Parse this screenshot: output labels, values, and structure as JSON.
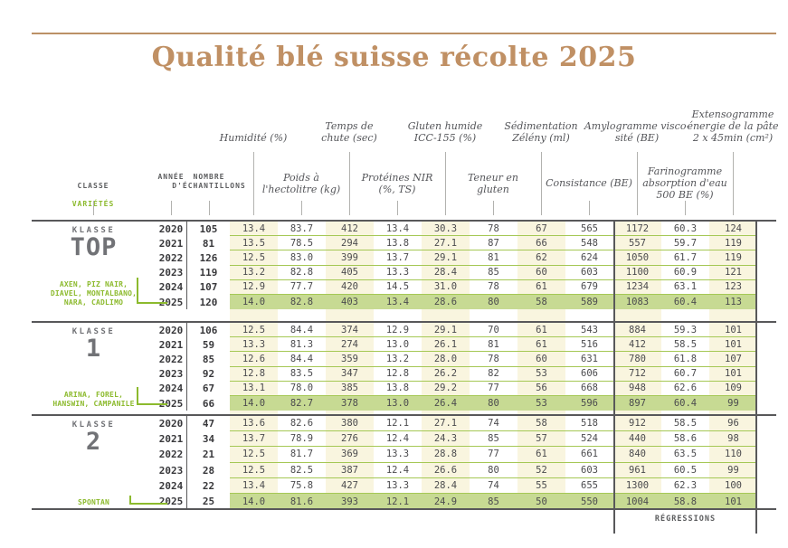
{
  "title": "Qualité blé suisse récolte 2025",
  "header": {
    "top_row": [
      "Humidité (%)",
      "Temps de\nchute (sec)",
      "Gluten humide\nICC-155 (%)",
      "Sédimentation\nZélény (ml)",
      "Amylogramme visco-\nsité (BE)",
      "Extensogramme\nénergie de la pâte\n2 x 45min (cm²)"
    ],
    "second_row": [
      "Poids à\nl'hectolitre (kg)",
      "Protéines NIR\n(%, TS)",
      "Teneur en\ngluten",
      "Consistance (BE)",
      "Farinogramme\nabsorption d'eau\n500 BE (%)"
    ],
    "left": {
      "classe": "CLASSE",
      "varietes": "VARIÉTÉS",
      "annee": "ANNÉE",
      "nombre": "NOMBRE\nD'ÉCHANTILLONS"
    }
  },
  "regressions_label": "RÉGRESSIONS",
  "classes": [
    {
      "label_small": "KLASSE",
      "label_big": "TOP",
      "varieties": "AXEN, PIZ NAIR,\nDIAVEL, MONTALBANO,\nNARA, CADLIMO",
      "rows": [
        {
          "year": "2020",
          "n": "105",
          "values": [
            "13.4",
            "83.7",
            "412",
            "13.4",
            "30.3",
            "78",
            "67",
            "565",
            "1172",
            "60.3",
            "124"
          ]
        },
        {
          "year": "2021",
          "n": "81",
          "values": [
            "13.5",
            "78.5",
            "294",
            "13.8",
            "27.1",
            "87",
            "66",
            "548",
            "557",
            "59.7",
            "119"
          ]
        },
        {
          "year": "2022",
          "n": "126",
          "values": [
            "12.5",
            "83.0",
            "399",
            "13.7",
            "29.1",
            "81",
            "62",
            "624",
            "1050",
            "61.7",
            "119"
          ]
        },
        {
          "year": "2023",
          "n": "119",
          "values": [
            "13.2",
            "82.8",
            "405",
            "13.3",
            "28.4",
            "85",
            "60",
            "603",
            "1100",
            "60.9",
            "121"
          ]
        },
        {
          "year": "2024",
          "n": "107",
          "values": [
            "12.9",
            "77.7",
            "420",
            "14.5",
            "31.0",
            "78",
            "61",
            "679",
            "1234",
            "63.1",
            "123"
          ]
        },
        {
          "year": "2025",
          "n": "120",
          "values": [
            "14.0",
            "82.8",
            "403",
            "13.4",
            "28.6",
            "80",
            "58",
            "589",
            "1083",
            "60.4",
            "113"
          ]
        }
      ]
    },
    {
      "label_small": "KLASSE",
      "label_big": "1",
      "varieties": "ARINA, FOREL,\nHANSWIN, CAMPANILE",
      "rows": [
        {
          "year": "2020",
          "n": "106",
          "values": [
            "12.5",
            "84.4",
            "374",
            "12.9",
            "29.1",
            "70",
            "61",
            "543",
            "884",
            "59.3",
            "101"
          ]
        },
        {
          "year": "2021",
          "n": "59",
          "values": [
            "13.3",
            "81.3",
            "274",
            "13.0",
            "26.1",
            "81",
            "61",
            "516",
            "412",
            "58.5",
            "101"
          ]
        },
        {
          "year": "2022",
          "n": "85",
          "values": [
            "12.6",
            "84.4",
            "359",
            "13.2",
            "28.0",
            "78",
            "60",
            "631",
            "780",
            "61.8",
            "107"
          ]
        },
        {
          "year": "2023",
          "n": "92",
          "values": [
            "12.8",
            "83.5",
            "347",
            "12.8",
            "26.2",
            "82",
            "53",
            "606",
            "712",
            "60.7",
            "101"
          ]
        },
        {
          "year": "2024",
          "n": "67",
          "values": [
            "13.1",
            "78.0",
            "385",
            "13.8",
            "29.2",
            "77",
            "56",
            "668",
            "948",
            "62.6",
            "109"
          ]
        },
        {
          "year": "2025",
          "n": "66",
          "values": [
            "14.0",
            "82.7",
            "378",
            "13.0",
            "26.4",
            "80",
            "53",
            "596",
            "897",
            "60.4",
            "99"
          ]
        }
      ]
    },
    {
      "label_small": "KLASSE",
      "label_big": "2",
      "varieties": "SPONTAN",
      "rows": [
        {
          "year": "2020",
          "n": "47",
          "values": [
            "13.6",
            "82.6",
            "380",
            "12.1",
            "27.1",
            "74",
            "58",
            "518",
            "912",
            "58.5",
            "96"
          ]
        },
        {
          "year": "2021",
          "n": "34",
          "values": [
            "13.7",
            "78.9",
            "276",
            "12.4",
            "24.3",
            "85",
            "57",
            "524",
            "440",
            "58.6",
            "98"
          ]
        },
        {
          "year": "2022",
          "n": "21",
          "values": [
            "12.5",
            "81.7",
            "369",
            "13.3",
            "28.8",
            "77",
            "61",
            "661",
            "840",
            "63.5",
            "110"
          ]
        },
        {
          "year": "2023",
          "n": "28",
          "values": [
            "12.5",
            "82.5",
            "387",
            "12.4",
            "26.6",
            "80",
            "52",
            "603",
            "961",
            "60.5",
            "99"
          ]
        },
        {
          "year": "2024",
          "n": "22",
          "values": [
            "13.4",
            "75.8",
            "427",
            "13.3",
            "28.4",
            "74",
            "55",
            "655",
            "1300",
            "62.3",
            "100"
          ]
        },
        {
          "year": "2025",
          "n": "25",
          "values": [
            "14.0",
            "81.6",
            "393",
            "12.1",
            "24.9",
            "85",
            "50",
            "550",
            "1004",
            "58.8",
            "101"
          ]
        }
      ]
    }
  ],
  "colors": {
    "accent_tan": "#c09064",
    "accent_green": "#8cba2d",
    "highlight_row": "#c7da93",
    "stripe_cream": "#f9f5df",
    "line_dark": "#58585a",
    "line_green": "#a5c855"
  }
}
